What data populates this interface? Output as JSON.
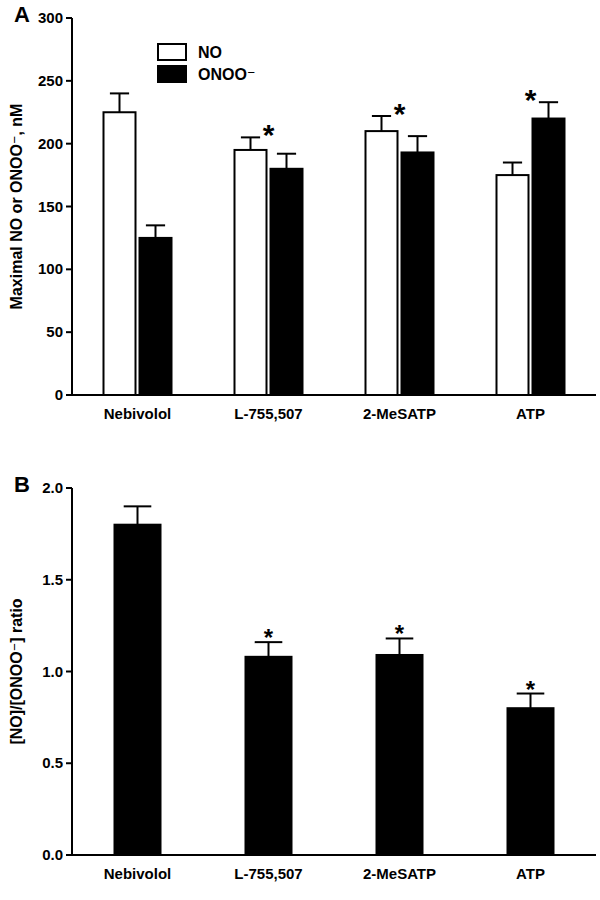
{
  "chart_data": [
    {
      "type": "bar",
      "title": "A",
      "y_label": "Maximal NO or ONOO⁻, nM",
      "categories": [
        "Nebivolol",
        "L-755,507",
        "2-MeSATP",
        "ATP"
      ],
      "series": [
        {
          "name": "NO",
          "color": "#ffffff",
          "values": [
            225,
            195,
            210,
            175
          ],
          "errors": [
            15,
            10,
            12,
            10
          ]
        },
        {
          "name": "ONOO⁻",
          "color": "#000000",
          "values": [
            125,
            180,
            193,
            220
          ],
          "errors": [
            10,
            12,
            13,
            13
          ]
        }
      ],
      "ylim": [
        0,
        300
      ],
      "yticks": [
        0,
        50,
        100,
        150,
        200,
        250,
        300
      ],
      "legend": "upper left",
      "annotations": [
        {
          "text": "*",
          "category": "L-755,507"
        },
        {
          "text": "*",
          "category": "2-MeSATP"
        },
        {
          "text": "*",
          "category": "ATP"
        }
      ]
    },
    {
      "type": "bar",
      "title": "B",
      "y_label": "[NO]/[ONOO⁻] ratio",
      "categories": [
        "Nebivolol",
        "L-755,507",
        "2-MeSATP",
        "ATP"
      ],
      "values": [
        1.8,
        1.08,
        1.09,
        0.8
      ],
      "errors": [
        0.1,
        0.08,
        0.09,
        0.08
      ],
      "color": "#000000",
      "ylim": [
        0,
        2
      ],
      "yticks": [
        {
          "value": 0,
          "label": "0.0"
        },
        0.5,
        {
          "value": 1,
          "label": "1.0"
        },
        1.5,
        {
          "value": 2,
          "label": "2.0"
        }
      ],
      "annotations": [
        {
          "text": "*",
          "category": "L-755,507"
        },
        {
          "text": "*",
          "category": "2-MeSATP"
        },
        {
          "text": "*",
          "category": "ATP"
        }
      ]
    }
  ]
}
